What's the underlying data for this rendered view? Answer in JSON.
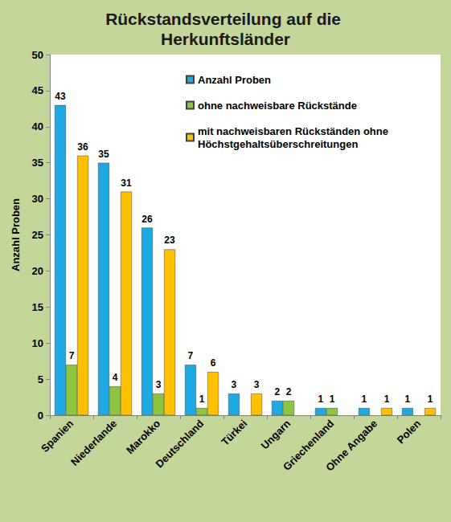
{
  "chart_data": {
    "type": "bar",
    "title": "Rückstandsverteilung auf die Herkunftsländer",
    "y_label": "Anzahl Proben",
    "categories": [
      "Spanien",
      "Niederlande",
      "Marokko",
      "Deutschland",
      "Türkei",
      "Ungarn",
      "Griechenland",
      "Ohne Angabe",
      "Polen"
    ],
    "series": [
      {
        "name": "Anzahl Proben",
        "color": "#1FA9E1",
        "values": [
          43,
          35,
          26,
          7,
          3,
          2,
          1,
          1,
          1
        ]
      },
      {
        "name": "ohne nachweisbare Rückstände",
        "color": "#8CC63F",
        "values": [
          7,
          4,
          3,
          1,
          null,
          2,
          1,
          null,
          null
        ]
      },
      {
        "name": "mit nachweisbaren Rückständen ohne Höchstgehaltsüberschreitungen",
        "color": "#FFC000",
        "values": [
          36,
          31,
          23,
          6,
          3,
          null,
          null,
          1,
          1
        ]
      }
    ],
    "ylim": [
      0,
      50
    ],
    "yticks": [
      0,
      5,
      10,
      15,
      20,
      25,
      30,
      35,
      40,
      45,
      50
    ],
    "grid": false,
    "legend": "top right",
    "data_labels": true
  }
}
